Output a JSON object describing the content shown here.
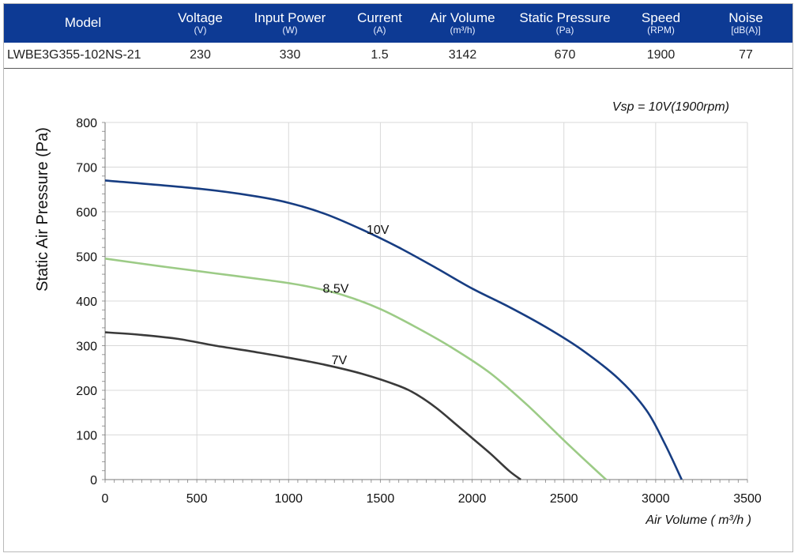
{
  "spec_table": {
    "headers": [
      {
        "name": "Model",
        "unit": ""
      },
      {
        "name": "Voltage",
        "unit": "(V)"
      },
      {
        "name": "Input Power",
        "unit": "(W)"
      },
      {
        "name": "Current",
        "unit": "(A)"
      },
      {
        "name": "Air Volume",
        "unit": "(m³/h)"
      },
      {
        "name": "Static Pressure",
        "unit": "(Pa)"
      },
      {
        "name": "Speed",
        "unit": "(RPM)"
      },
      {
        "name": "Noise",
        "unit": "[dB(A)]"
      }
    ],
    "row": {
      "model": "LWBE3G355-102NS-21",
      "voltage": "230",
      "input_power": "330",
      "current": "1.5",
      "air_volume": "3142",
      "static_pressure": "670",
      "speed": "1900",
      "noise": "77"
    }
  },
  "chart_data": {
    "type": "line",
    "annotation": "Vsp = 10V(1900rpm)",
    "xlabel": "Air Volume ( m³/h )",
    "ylabel": "Static Air Pressure  (Pa)",
    "xlim": [
      0,
      3500
    ],
    "ylim": [
      0,
      800
    ],
    "xticks": [
      0,
      500,
      1000,
      1500,
      2000,
      2500,
      3000,
      3500
    ],
    "yticks": [
      0,
      100,
      200,
      300,
      400,
      500,
      600,
      700,
      800
    ],
    "grid": true,
    "series": [
      {
        "name": "10V",
        "color": "#173d82",
        "x": [
          0,
          500,
          800,
          1000,
          1200,
          1400,
          1600,
          1800,
          2000,
          2200,
          2400,
          2600,
          2800,
          2950,
          3050,
          3142
        ],
        "y": [
          670,
          652,
          636,
          620,
          595,
          560,
          520,
          475,
          428,
          387,
          342,
          290,
          225,
          155,
          80,
          0
        ]
      },
      {
        "name": "8.5V",
        "color": "#9ccb86",
        "x": [
          0,
          300,
          600,
          900,
          1100,
          1300,
          1500,
          1700,
          1900,
          2100,
          2300,
          2500,
          2650,
          2730
        ],
        "y": [
          495,
          478,
          462,
          446,
          433,
          413,
          382,
          340,
          293,
          238,
          167,
          88,
          30,
          0
        ]
      },
      {
        "name": "7V",
        "color": "#3a3a3a",
        "x": [
          0,
          200,
          400,
          600,
          800,
          1000,
          1200,
          1400,
          1600,
          1700,
          1800,
          1900,
          2000,
          2100,
          2200,
          2265
        ],
        "y": [
          330,
          324,
          315,
          300,
          287,
          273,
          257,
          237,
          210,
          190,
          162,
          128,
          93,
          58,
          20,
          0
        ]
      }
    ]
  }
}
